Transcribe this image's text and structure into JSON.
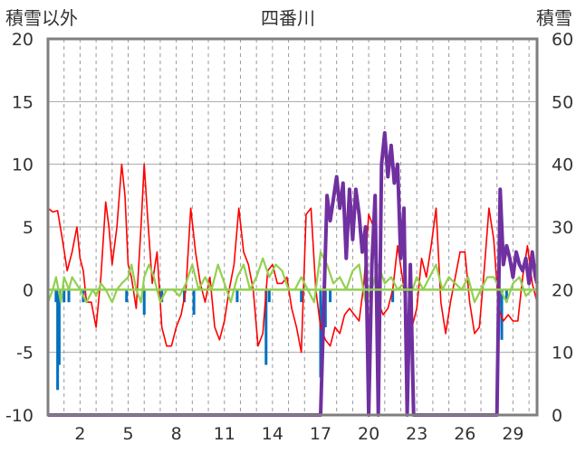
{
  "chart_data": {
    "type": "line",
    "title": "四番川",
    "ylabel_left": "積雪以外",
    "ylabel_right": "積雪",
    "y_left": {
      "min": -10,
      "max": 20,
      "ticks": [
        "-10",
        "-5",
        "0",
        "5",
        "10",
        "15",
        "20"
      ]
    },
    "y_right": {
      "min": 0,
      "max": 60,
      "ticks": [
        "0",
        "10",
        "20",
        "30",
        "40",
        "50",
        "60"
      ]
    },
    "x": {
      "min": 0,
      "max": 30.5,
      "tick_labels": [
        "2",
        "5",
        "8",
        "11",
        "14",
        "17",
        "20",
        "23",
        "26",
        "29"
      ],
      "tick_positions": [
        2,
        5,
        8,
        11,
        14,
        17,
        20,
        23,
        26,
        29
      ]
    },
    "grid": true,
    "colors": {
      "red": "#ff0000",
      "green": "#92d050",
      "blue": "#0070c0",
      "purple": "#7030a0",
      "frame": "#7f7f7f",
      "grid": "#a6a6a6"
    },
    "series": [
      {
        "color": "#ff0000",
        "axis": "left",
        "x": [
          0.0,
          0.3,
          0.6,
          0.9,
          1.2,
          1.5,
          1.8,
          2.0,
          2.2,
          2.4,
          2.7,
          3.0,
          3.3,
          3.6,
          3.8,
          4.0,
          4.3,
          4.6,
          4.8,
          5.0,
          5.2,
          5.5,
          5.8,
          6.0,
          6.2,
          6.5,
          6.8,
          7.1,
          7.4,
          7.7,
          8.0,
          8.3,
          8.6,
          8.9,
          9.2,
          9.5,
          9.8,
          10.1,
          10.4,
          10.7,
          11.0,
          11.3,
          11.6,
          11.9,
          12.2,
          12.5,
          12.8,
          13.1,
          13.4,
          13.7,
          14.0,
          14.3,
          14.6,
          14.9,
          15.2,
          15.5,
          15.8,
          16.1,
          16.4,
          16.7,
          17.0,
          17.3,
          17.6,
          17.9,
          18.2,
          18.5,
          18.8,
          19.1,
          19.4,
          19.7,
          20.0,
          20.3,
          20.6,
          20.9,
          21.2,
          21.5,
          21.8,
          22.1,
          22.4,
          22.7,
          23.0,
          23.3,
          23.6,
          23.9,
          24.2,
          24.5,
          24.8,
          25.1,
          25.4,
          25.7,
          26.0,
          26.3,
          26.6,
          26.9,
          27.2,
          27.5,
          27.8,
          28.1,
          28.4,
          28.7,
          29.0,
          29.3,
          29.6,
          29.9,
          30.2,
          30.5
        ],
        "y": [
          6.5,
          6.2,
          6.3,
          4.0,
          1.5,
          3.0,
          5.0,
          2.5,
          1.5,
          -1.0,
          -1.0,
          -3.0,
          1.0,
          7.0,
          5.0,
          2.0,
          5.0,
          10.0,
          7.5,
          2.0,
          1.0,
          -1.5,
          5.0,
          10.0,
          6.0,
          0.5,
          3.0,
          -3.0,
          -4.5,
          -4.5,
          -3.0,
          -2.0,
          0.0,
          6.5,
          3.0,
          0.5,
          -1.0,
          1.0,
          -3.0,
          -4.0,
          -2.5,
          0.0,
          2.0,
          6.5,
          3.0,
          2.0,
          0.0,
          -4.5,
          -3.5,
          1.5,
          2.0,
          0.5,
          0.5,
          1.0,
          -1.5,
          -3.0,
          -5.0,
          6.0,
          6.5,
          0.0,
          -3.0,
          -4.0,
          -4.5,
          -3.0,
          -3.5,
          -2.0,
          -1.5,
          -2.0,
          -2.5,
          0.5,
          6.0,
          5.0,
          -1.0,
          -2.0,
          -1.5,
          0.0,
          3.5,
          1.0,
          -2.5,
          -3.0,
          -1.5,
          2.5,
          1.0,
          3.5,
          6.5,
          -1.0,
          -3.5,
          -1.0,
          1.0,
          3.0,
          3.0,
          -1.0,
          -3.5,
          -3.0,
          1.5,
          6.5,
          4.0,
          -1.5,
          -2.5,
          -2.0,
          -2.5,
          -2.5,
          1.0,
          3.5,
          0.5,
          -1.0
        ]
      },
      {
        "color": "#92d050",
        "axis": "left",
        "x": [
          0.0,
          0.3,
          0.5,
          0.8,
          1.0,
          1.3,
          1.5,
          2.0,
          2.4,
          2.8,
          3.0,
          3.3,
          3.6,
          4.0,
          4.3,
          4.6,
          5.0,
          5.2,
          5.5,
          5.8,
          6.0,
          6.3,
          6.6,
          7.0,
          7.4,
          7.8,
          8.2,
          8.6,
          9.0,
          9.4,
          9.8,
          10.2,
          10.6,
          11.0,
          11.4,
          11.8,
          12.2,
          12.6,
          13.0,
          13.4,
          13.8,
          14.2,
          14.6,
          15.0,
          15.4,
          15.8,
          16.2,
          16.6,
          17.0,
          17.4,
          17.8,
          18.2,
          18.6,
          19.0,
          19.4,
          19.8,
          20.2,
          20.6,
          21.0,
          21.4,
          21.8,
          22.2,
          22.6,
          23.0,
          23.4,
          23.8,
          24.2,
          24.6,
          25.0,
          25.4,
          25.8,
          26.2,
          26.6,
          27.0,
          27.4,
          27.8,
          28.2,
          28.6,
          29.0,
          29.4,
          29.8,
          30.2,
          30.5
        ],
        "y": [
          -1.0,
          0.0,
          1.0,
          -1.0,
          1.0,
          0.0,
          1.0,
          0.0,
          -1.0,
          0.0,
          -0.5,
          0.5,
          0.0,
          -1.0,
          0.0,
          0.5,
          1.0,
          2.0,
          0.0,
          -1.0,
          1.0,
          2.0,
          1.0,
          -1.0,
          0.0,
          0.0,
          -0.5,
          0.5,
          2.0,
          0.0,
          1.0,
          0.0,
          2.0,
          0.5,
          -1.0,
          1.0,
          2.0,
          0.0,
          1.0,
          2.5,
          1.0,
          2.0,
          1.5,
          0.0,
          0.0,
          1.0,
          0.0,
          -1.0,
          3.0,
          2.0,
          0.5,
          1.0,
          0.0,
          1.5,
          2.0,
          -1.0,
          0.0,
          2.0,
          0.5,
          1.0,
          0.0,
          0.5,
          -0.5,
          1.0,
          0.0,
          1.0,
          2.0,
          0.0,
          1.0,
          0.5,
          0.0,
          1.0,
          -1.0,
          0.0,
          1.0,
          1.0,
          0.0,
          -1.0,
          0.5,
          1.0,
          -0.5,
          0.0,
          0.0
        ]
      },
      {
        "color": "#7030a0",
        "axis": "right",
        "x": [
          0.0,
          17.0,
          17.4,
          17.6,
          18.0,
          18.2,
          18.4,
          18.6,
          18.8,
          19.0,
          19.2,
          19.4,
          19.6,
          19.8,
          20.0,
          20.2,
          20.4,
          20.6,
          20.8,
          21.0,
          21.2,
          21.4,
          21.6,
          21.8,
          22.0,
          22.2,
          22.4,
          22.6,
          22.8,
          23.0,
          23.2,
          23.4,
          23.6,
          28.0,
          28.2,
          28.4,
          28.6,
          28.8,
          29.0,
          29.2,
          29.4,
          29.6,
          29.8,
          30.0,
          30.2,
          30.4,
          30.5
        ],
        "y": [
          0.0,
          0.0,
          35.0,
          31.0,
          38.0,
          33.0,
          37.0,
          25.0,
          36.0,
          28.0,
          36.0,
          32.0,
          26.0,
          30.0,
          0.0,
          24.0,
          35.0,
          0.0,
          40.0,
          45.0,
          38.0,
          43.0,
          37.0,
          40.0,
          25.0,
          33.0,
          0.0,
          24.0,
          0.0,
          0.0,
          0.0,
          0.0,
          0.0,
          0.0,
          36.0,
          24.0,
          27.0,
          25.0,
          22.0,
          26.0,
          24.0,
          23.0,
          25.0,
          21.0,
          26.0,
          22.0,
          21.0
        ]
      }
    ],
    "bars": {
      "color": "#0070c0",
      "axis": "left",
      "x": [
        0.5,
        0.6,
        0.7,
        1.0,
        1.3,
        2.2,
        4.9,
        6.0,
        7.1,
        8.5,
        9.1,
        11.8,
        13.6,
        13.8,
        15.8,
        17.0,
        17.3,
        17.6,
        19.9,
        21.5,
        28.1,
        28.3,
        28.6
      ],
      "values": [
        -1.0,
        -8.0,
        -6.0,
        -1.0,
        -1.0,
        -1.0,
        -1.0,
        -2.0,
        -1.0,
        -1.0,
        -2.0,
        -1.0,
        -6.0,
        -1.0,
        -1.0,
        -7.0,
        -3.0,
        -1.0,
        -1.0,
        -1.0,
        -3.0,
        -4.0,
        -1.0
      ]
    }
  }
}
